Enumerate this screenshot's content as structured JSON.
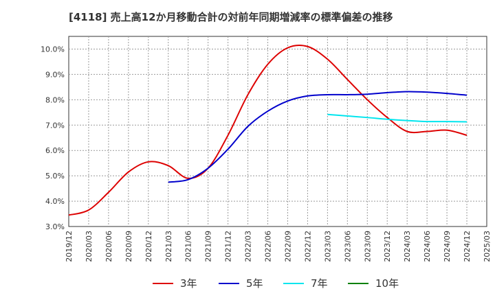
{
  "title": "[4118]  売上高12か月移動合計の対前年同期増減率の標準偏差の推移",
  "chart_data": {
    "type": "line",
    "title": "[4118]  売上高12か月移動合計の対前年同期増減率の標準偏差の推移",
    "xlabel": "",
    "ylabel": "",
    "x": [
      "2019/12",
      "2020/03",
      "2020/06",
      "2020/09",
      "2020/12",
      "2021/03",
      "2021/06",
      "2021/09",
      "2021/12",
      "2022/03",
      "2022/06",
      "2022/09",
      "2022/12",
      "2023/03",
      "2023/06",
      "2023/09",
      "2023/12",
      "2024/03",
      "2024/06",
      "2024/09",
      "2024/12",
      "2025/03"
    ],
    "ylim": [
      3.0,
      10.5
    ],
    "y_ticks": [
      "3.0%",
      "4.0%",
      "5.0%",
      "6.0%",
      "7.0%",
      "8.0%",
      "9.0%",
      "10.0%"
    ],
    "grid": true,
    "legend_position": "bottom",
    "series": [
      {
        "name": "3年",
        "color": "#dd0000",
        "values": [
          3.45,
          3.65,
          4.35,
          5.15,
          5.55,
          5.4,
          4.9,
          5.3,
          6.6,
          8.2,
          9.4,
          10.05,
          10.1,
          9.6,
          8.8,
          8.0,
          7.3,
          6.75,
          6.75,
          6.8,
          6.6,
          null
        ]
      },
      {
        "name": "5年",
        "color": "#0000cc",
        "values": [
          null,
          null,
          null,
          null,
          null,
          4.75,
          4.85,
          5.3,
          6.05,
          6.95,
          7.55,
          7.95,
          8.15,
          8.2,
          8.2,
          8.22,
          8.28,
          8.32,
          8.3,
          8.25,
          8.18,
          null
        ]
      },
      {
        "name": "7年",
        "color": "#00e5ee",
        "values": [
          null,
          null,
          null,
          null,
          null,
          null,
          null,
          null,
          null,
          null,
          null,
          null,
          null,
          7.42,
          7.36,
          7.3,
          7.23,
          7.18,
          7.14,
          7.14,
          7.13,
          null
        ]
      },
      {
        "name": "10年",
        "color": "#008000",
        "values": [
          null,
          null,
          null,
          null,
          null,
          null,
          null,
          null,
          null,
          null,
          null,
          null,
          null,
          null,
          null,
          null,
          null,
          null,
          null,
          null,
          null,
          null
        ]
      }
    ]
  }
}
